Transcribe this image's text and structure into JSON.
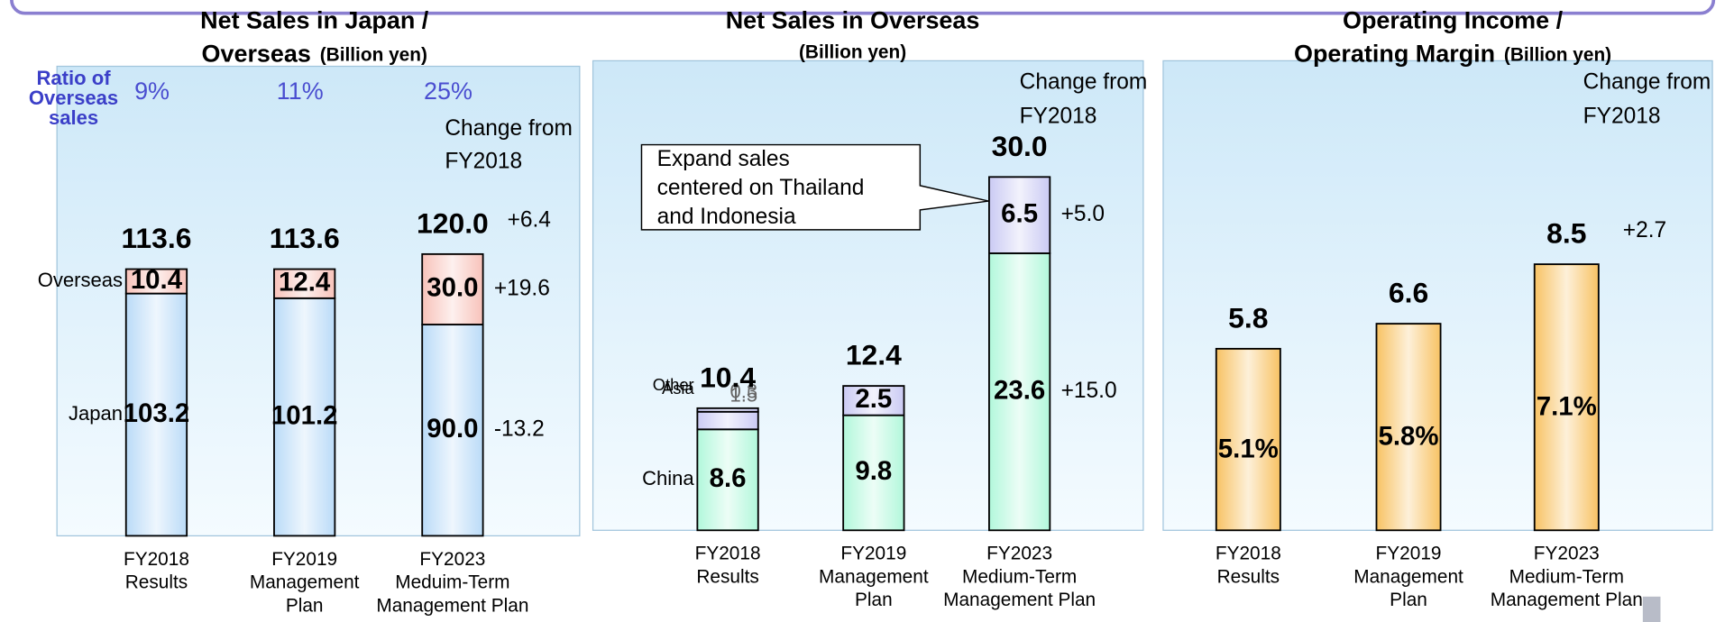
{
  "chart_data": [
    {
      "type": "bar",
      "stacked": true,
      "title": [
        "Net Sales in Japan /",
        "Overseas"
      ],
      "unit": "(Billion yen)",
      "categories": [
        [
          "FY2018",
          "Results"
        ],
        [
          "FY2019",
          "Management",
          "Plan"
        ],
        [
          "FY2023",
          "Meduim-Term",
          "Management Plan"
        ]
      ],
      "series": [
        {
          "name": "Japan",
          "color": "#bcdcf8",
          "values": [
            103.2,
            101.2,
            90.0
          ],
          "value_labels": [
            "103.2",
            "101.2",
            "90.0"
          ],
          "change": {
            "value": -13.2,
            "label": "-13.2"
          }
        },
        {
          "name": "Overseas",
          "color": "#f8c4bc",
          "values": [
            10.4,
            12.4,
            30.0
          ],
          "value_labels": [
            "10.4",
            "12.4",
            "30.0"
          ],
          "change": {
            "value": 19.6,
            "label": "+19.6"
          }
        }
      ],
      "totals": {
        "values": [
          113.6,
          113.6,
          120.0
        ],
        "value_labels": [
          "113.6",
          "113.6",
          "120.0"
        ],
        "change": {
          "value": 6.4,
          "label": "+6.4"
        }
      },
      "ratio": {
        "label": [
          "Ratio of",
          "Overseas",
          "sales"
        ],
        "values": [
          9,
          11,
          25
        ],
        "value_labels": [
          "9%",
          "11%",
          "25%"
        ]
      },
      "change_header": [
        "Change from",
        "FY2018"
      ],
      "ylim": [
        0,
        200
      ]
    },
    {
      "type": "bar",
      "stacked": true,
      "title": [
        "Net Sales in Overseas"
      ],
      "unit": "(Billion yen)",
      "categories": [
        [
          "FY2018",
          "Results"
        ],
        [
          "FY2019",
          "Management",
          "Plan"
        ],
        [
          "FY2023",
          "Medium-Term",
          "Management Plan"
        ]
      ],
      "series": [
        {
          "name": "China",
          "color": "#b4f8dc",
          "values": [
            8.6,
            9.8,
            23.6
          ],
          "change": {
            "value": 15.0,
            "label": "+15.0"
          }
        },
        {
          "name": "Asia",
          "color": "#ccccf4",
          "values": [
            1.5,
            2.5,
            6.5
          ],
          "change": {
            "value": 5.0,
            "label": "+5.0"
          }
        },
        {
          "name": "Other",
          "color": "#ccccf4",
          "values": [
            0.3,
            null,
            null
          ]
        }
      ],
      "totals": {
        "values": [
          10.4,
          12.4,
          30.0
        ],
        "value_labels": [
          "10.4",
          "12.4",
          "30.0"
        ]
      },
      "change_header": [
        "Change from",
        "FY2018"
      ],
      "annotation": [
        "Expand sales",
        "centered on Thailand",
        "and Indonesia"
      ],
      "ylim": [
        0,
        40
      ]
    },
    {
      "type": "bar",
      "stacked": false,
      "title": [
        "Operating Income /",
        "Operating Margin"
      ],
      "unit": "(Billion yen)",
      "categories": [
        [
          "FY2018",
          "Results"
        ],
        [
          "FY2019",
          "Management",
          "Plan"
        ],
        [
          "FY2023",
          "Medium-Term",
          "Management Plan"
        ]
      ],
      "series": [
        {
          "color": "#f8c468",
          "values": [
            5.8,
            6.6,
            8.5
          ]
        }
      ],
      "totals": {
        "values": [
          5.8,
          6.6,
          8.5
        ],
        "change": {
          "value": 2.7,
          "label": "+2.7"
        }
      },
      "margin": {
        "values": [
          5.1,
          5.8,
          7.1
        ],
        "value_labels": [
          "5.1%",
          "5.8%",
          "7.1%"
        ]
      },
      "change_header": [
        "Change from",
        "FY2018"
      ],
      "ylim": [
        0,
        15
      ]
    }
  ]
}
